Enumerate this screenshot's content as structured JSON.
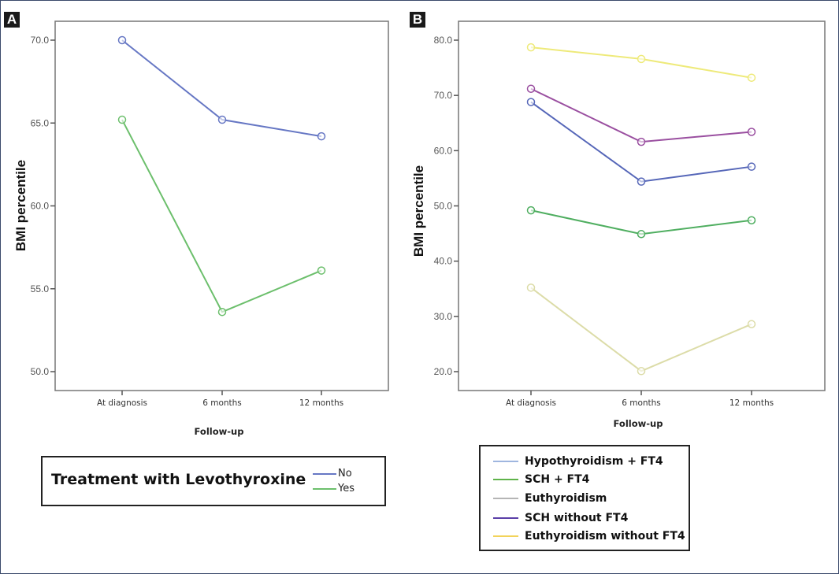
{
  "panels": {
    "a": {
      "label": "A"
    },
    "b": {
      "label": "B"
    }
  },
  "legend_a": {
    "title": "Treatment with Levothyroxine",
    "entries": [
      {
        "label": "No",
        "color": "#6677c4"
      },
      {
        "label": "Yes",
        "color": "#6cbf6c"
      }
    ]
  },
  "legend_b": {
    "entries": [
      {
        "label": "Hypothyroidism + FT4",
        "color": "#9fb6df"
      },
      {
        "label": "SCH + FT4",
        "color": "#5fb34a"
      },
      {
        "label": "Euthyroidism",
        "color": "#b5b5b5"
      },
      {
        "label": "SCH without FT4",
        "color": "#5b3fa8"
      },
      {
        "label": "Euthyroidism without FT4",
        "color": "#f2d35a"
      }
    ]
  },
  "chart_data": [
    {
      "type": "line",
      "panel": "A",
      "title": "",
      "xlabel": "Follow-up",
      "ylabel": "BMI percentile",
      "categories": [
        "At diagnosis",
        "6 months",
        "12 months"
      ],
      "ylim": [
        48.9,
        71.2
      ],
      "yticks": [
        "50.0",
        "55.0",
        "60.0",
        "65.0",
        "70.0"
      ],
      "ytick_values": [
        50,
        55,
        60,
        65,
        70
      ],
      "grid": false,
      "legend_placement": "bottom",
      "series": [
        {
          "name": "No",
          "color": "#6677c4",
          "values": [
            70.0,
            65.2,
            64.2
          ]
        },
        {
          "name": "Yes",
          "color": "#6cbf6c",
          "values": [
            65.2,
            53.6,
            56.1
          ]
        }
      ]
    },
    {
      "type": "line",
      "panel": "B",
      "title": "",
      "xlabel": "Follow-up",
      "ylabel": "BMI percentile",
      "categories": [
        "At diagnosis",
        "6 months",
        "12 months"
      ],
      "ylim": [
        16.6,
        83.4
      ],
      "yticks": [
        "20.0",
        "30.0",
        "40.0",
        "50.0",
        "60.0",
        "70.0",
        "80.0"
      ],
      "ytick_values": [
        20,
        30,
        40,
        50,
        60,
        70,
        80
      ],
      "grid": false,
      "legend_placement": "bottom",
      "series": [
        {
          "name": "Euthyroidism without FT4 (plotted)",
          "color": "#eeea7a",
          "values": [
            78.7,
            76.6,
            73.2
          ]
        },
        {
          "name": "SCH without FT4 (plotted)",
          "color": "#9a4fa0",
          "values": [
            71.2,
            61.6,
            63.4
          ]
        },
        {
          "name": "Hypothyroidism + FT4 (plotted)",
          "color": "#5566b8",
          "values": [
            68.8,
            54.4,
            57.1
          ]
        },
        {
          "name": "SCH + FT4 (plotted)",
          "color": "#4fae60",
          "values": [
            49.2,
            44.9,
            47.4
          ]
        },
        {
          "name": "Euthyroidism (plotted)",
          "color": "#dcdca8",
          "values": [
            35.2,
            20.1,
            28.6
          ]
        }
      ]
    }
  ]
}
